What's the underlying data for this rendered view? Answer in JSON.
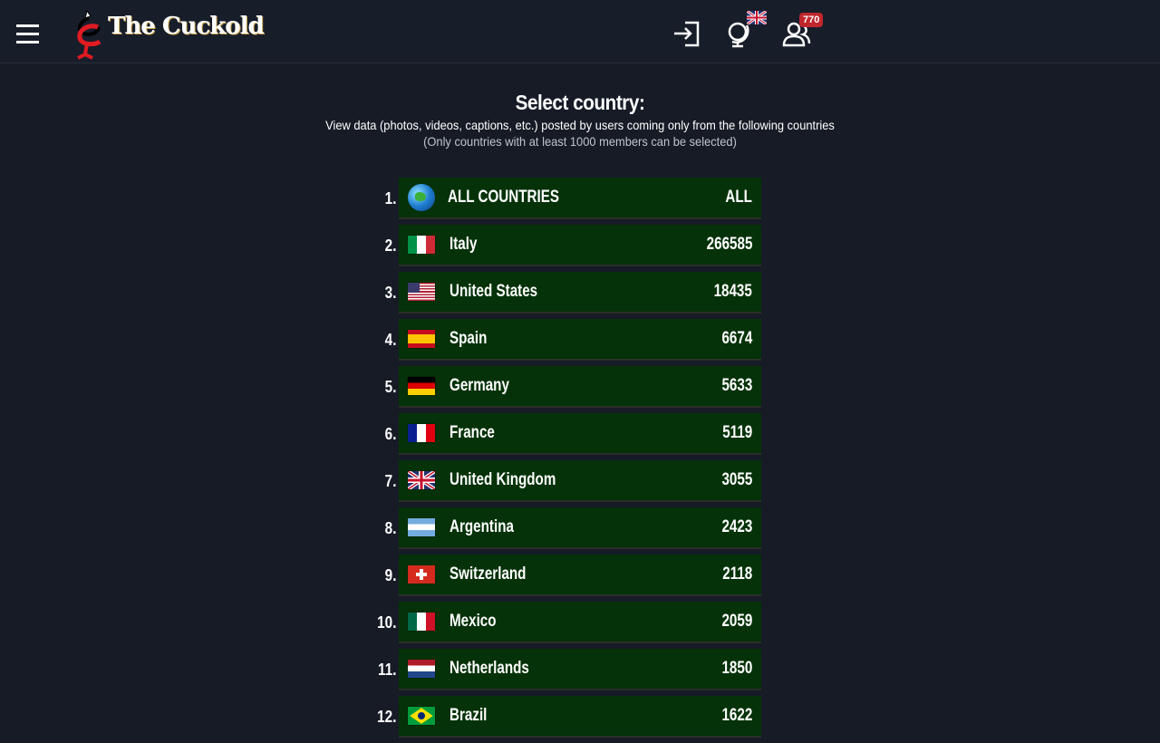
{
  "header": {
    "brand": "The Cuckold",
    "notification_count": "770",
    "language_flag": "uk-flag",
    "icons": [
      "menu-icon",
      "login-icon",
      "globe-icon",
      "users-icon"
    ]
  },
  "page": {
    "title": "Select country:",
    "subtitle": "View data (photos, videos, captions, etc.) posted by users coming only from the following countries",
    "note": "(Only countries with at least 1000 members can be selected)"
  },
  "colors": {
    "background": "#161b26",
    "row": "#053208",
    "badge": "#c0272d"
  },
  "countries": [
    {
      "rank": "1.",
      "name": "ALL COUNTRIES",
      "count": "ALL",
      "flag": "globe"
    },
    {
      "rank": "2.",
      "name": "Italy",
      "count": "266585",
      "flag": "it"
    },
    {
      "rank": "3.",
      "name": "United States",
      "count": "18435",
      "flag": "us"
    },
    {
      "rank": "4.",
      "name": "Spain",
      "count": "6674",
      "flag": "es"
    },
    {
      "rank": "5.",
      "name": "Germany",
      "count": "5633",
      "flag": "de"
    },
    {
      "rank": "6.",
      "name": "France",
      "count": "5119",
      "flag": "fr"
    },
    {
      "rank": "7.",
      "name": "United Kingdom",
      "count": "3055",
      "flag": "gb"
    },
    {
      "rank": "8.",
      "name": "Argentina",
      "count": "2423",
      "flag": "ar"
    },
    {
      "rank": "9.",
      "name": "Switzerland",
      "count": "2118",
      "flag": "ch"
    },
    {
      "rank": "10.",
      "name": "Mexico",
      "count": "2059",
      "flag": "mx"
    },
    {
      "rank": "11.",
      "name": "Netherlands",
      "count": "1850",
      "flag": "nl"
    },
    {
      "rank": "12.",
      "name": "Brazil",
      "count": "1622",
      "flag": "br"
    }
  ]
}
